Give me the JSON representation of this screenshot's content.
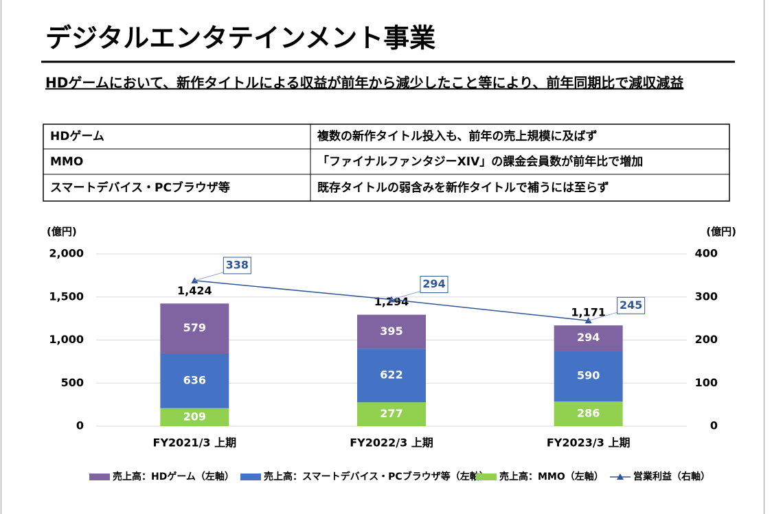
{
  "header": {
    "title": "デジタルエンタテインメント事業",
    "subtitle": "HDゲームにおいて、新作タイトルによる収益が前年から減少したこと等により、前年同期比で減収減益"
  },
  "table": {
    "rows": [
      [
        "HDゲーム",
        "複数の新作タイトル投入も、前年の売上規模に及ばず"
      ],
      [
        "MMO",
        "「ファイナルファンタジーXIV」の課金会員数が前年比で増加"
      ],
      [
        "スマートデバイス・PCブラウザ等",
        "既存タイトルの弱含みを新作タイトルで補うには至らず"
      ]
    ]
  },
  "chart_data": {
    "type": "bar",
    "y_unit": "(億円)",
    "y2_unit": "(億円)",
    "categories": [
      "FY2021/3 上期",
      "FY2022/3 上期",
      "FY2023/3 上期"
    ],
    "series": [
      {
        "name": "売上高：HDゲーム（左軸）",
        "color": "#8064a2",
        "values": [
          579,
          395,
          294
        ]
      },
      {
        "name": "売上高：スマートデバイス・PCブラウザ等（左軸）",
        "color": "#4472c4",
        "values": [
          636,
          622,
          590
        ]
      },
      {
        "name": "売上高：MMO（左軸）",
        "color": "#92d050",
        "values": [
          209,
          277,
          286
        ]
      },
      {
        "name": "営業利益（右軸）",
        "color": "#2f5597",
        "type": "line",
        "axis": "y2",
        "values": [
          338,
          294,
          245
        ]
      }
    ],
    "totals": [
      1424,
      1294,
      1171
    ],
    "total_labels": [
      "1,424",
      "1,294",
      "1,171"
    ],
    "ylim": [
      0,
      2000
    ],
    "yticks": [
      {
        "value": 0,
        "label": "0"
      },
      {
        "value": 500,
        "label": "500"
      },
      {
        "value": 1000,
        "label": "1,000"
      },
      {
        "value": 1500,
        "label": "1,500"
      },
      {
        "value": 2000,
        "label": "2,000"
      }
    ],
    "y2lim": [
      0,
      400
    ],
    "y2ticks": [
      0,
      100,
      200,
      300,
      400
    ],
    "grid": true,
    "legend": "bottom"
  }
}
